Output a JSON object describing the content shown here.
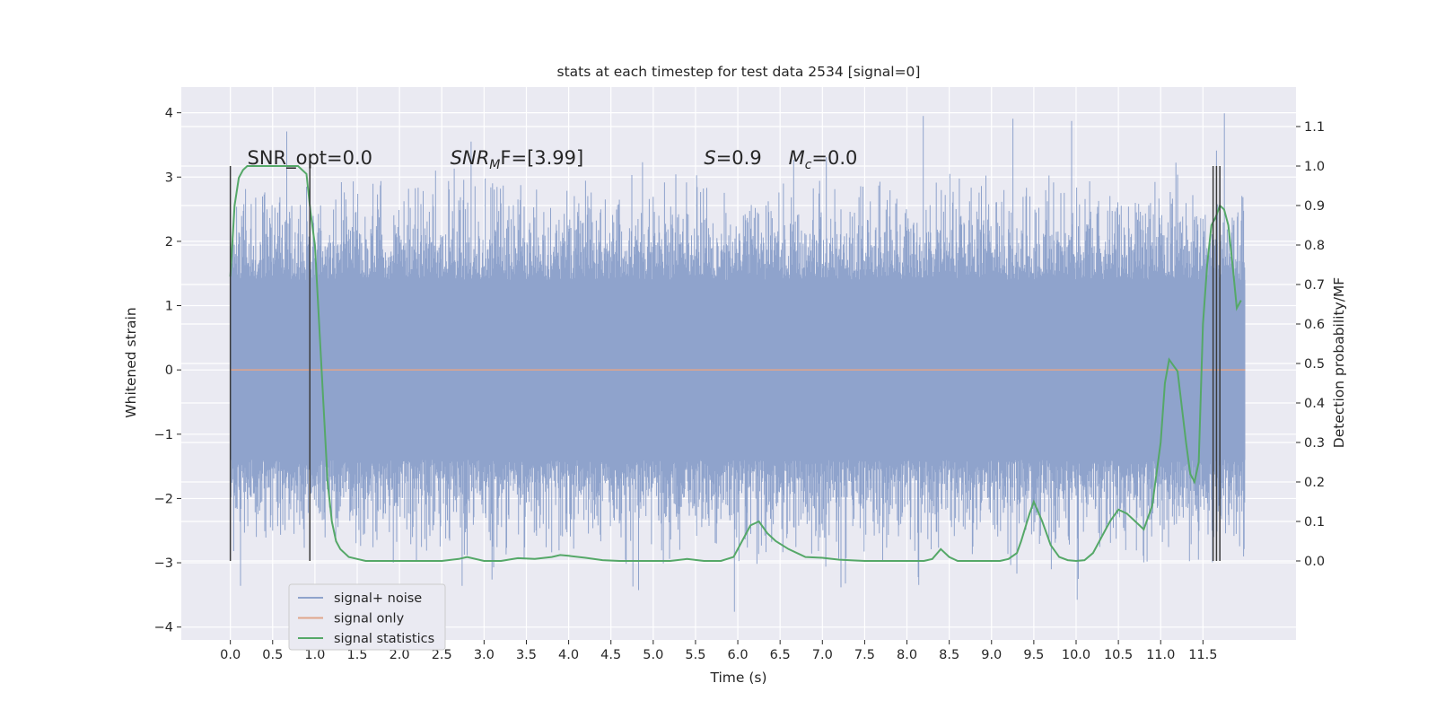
{
  "chart_data": {
    "type": "line",
    "title": "stats at each timestep for test data 2534 [signal=0]",
    "xlabel": "Time (s)",
    "ylabel_left": "Whitened strain",
    "ylabel_right": "Detection probability/MF",
    "xlim": [
      -0.58,
      12.6
    ],
    "xticks": [
      "0.0",
      "0.5",
      "1.0",
      "1.5",
      "2.0",
      "2.5",
      "3.0",
      "3.5",
      "4.0",
      "4.5",
      "5.0",
      "5.5",
      "6.0",
      "6.5",
      "7.0",
      "7.5",
      "8.0",
      "8.5",
      "9.0",
      "9.5",
      "10.0",
      "10.5",
      "11.0",
      "11.5"
    ],
    "xtick_values": [
      0.0,
      0.5,
      1.0,
      1.5,
      2.0,
      2.5,
      3.0,
      3.5,
      4.0,
      4.5,
      5.0,
      5.5,
      6.0,
      6.5,
      7.0,
      7.5,
      8.0,
      8.5,
      9.0,
      9.5,
      10.0,
      10.5,
      11.0,
      11.5
    ],
    "ylim_left": [
      -4.2,
      4.4
    ],
    "yticks_left": [
      "−4",
      "−3",
      "−2",
      "−1",
      "0",
      "1",
      "2",
      "3",
      "4"
    ],
    "ytick_values_left": [
      -4,
      -3,
      -2,
      -1,
      0,
      1,
      2,
      3,
      4
    ],
    "ylim_right": [
      -0.2,
      1.2
    ],
    "yticks_right": [
      "0.0",
      "0.1",
      "0.2",
      "0.3",
      "0.4",
      "0.5",
      "0.6",
      "0.7",
      "0.8",
      "0.9",
      "1.0",
      "1.1"
    ],
    "ytick_values_right": [
      0.0,
      0.1,
      0.2,
      0.3,
      0.4,
      0.5,
      0.6,
      0.7,
      0.8,
      0.9,
      1.0,
      1.1
    ],
    "grid": true,
    "legend": {
      "placement": "lower-left",
      "entries": [
        "signal+ noise",
        "signal only",
        "signal statistics"
      ]
    },
    "annotations": [
      {
        "text": "SNR_opt=0.0",
        "x": 0.2,
        "y": 3.2
      },
      {
        "text": "SNR",
        "sub": "M",
        "rest": "F=[3.99]",
        "x": 2.6,
        "y": 3.2
      },
      {
        "text": "S",
        "rest": "=0.9",
        "x": 5.6,
        "y": 3.2
      },
      {
        "text": "M",
        "sub": "c",
        "rest": "=0.0",
        "x": 6.6,
        "y": 3.2
      }
    ],
    "vertical_markers": {
      "x": [
        0.0,
        0.94,
        11.62,
        11.66,
        11.7
      ],
      "ymin_right": 0.0,
      "ymax_right": 1.0
    },
    "series": [
      {
        "name": "signal+ noise",
        "color": "#8fa3cc",
        "axis": "left",
        "x_range": [
          0.0,
          12.0
        ],
        "core_band": [
          -1.4,
          1.4
        ],
        "typical_extreme": 3.0,
        "max_value": 4.1,
        "min_value": -3.8
      },
      {
        "name": "signal only",
        "color": "#e0a58a",
        "axis": "left",
        "x": [
          0.0,
          12.0
        ],
        "values": [
          0.0,
          0.0
        ]
      },
      {
        "name": "signal statistics",
        "color": "#55a868",
        "axis": "right",
        "x": [
          0.0,
          0.05,
          0.1,
          0.15,
          0.2,
          0.3,
          0.5,
          0.7,
          0.8,
          0.85,
          0.9,
          0.95,
          1.0,
          1.05,
          1.1,
          1.15,
          1.2,
          1.25,
          1.3,
          1.35,
          1.4,
          1.5,
          1.6,
          1.8,
          2.0,
          2.2,
          2.5,
          2.7,
          2.8,
          3.0,
          3.2,
          3.4,
          3.6,
          3.8,
          3.9,
          4.0,
          4.2,
          4.4,
          4.6,
          5.0,
          5.2,
          5.4,
          5.6,
          5.8,
          5.95,
          6.05,
          6.15,
          6.25,
          6.35,
          6.45,
          6.6,
          6.8,
          7.0,
          7.2,
          7.5,
          7.8,
          8.0,
          8.1,
          8.2,
          8.3,
          8.4,
          8.5,
          8.6,
          8.8,
          9.0,
          9.1,
          9.2,
          9.3,
          9.35,
          9.45,
          9.5,
          9.6,
          9.7,
          9.8,
          9.9,
          10.0,
          10.1,
          10.2,
          10.3,
          10.4,
          10.5,
          10.6,
          10.7,
          10.8,
          10.9,
          11.0,
          11.05,
          11.1,
          11.2,
          11.3,
          11.35,
          11.4,
          11.45,
          11.5,
          11.55,
          11.6,
          11.65,
          11.7,
          11.75,
          11.8,
          11.85,
          11.9,
          11.95
        ],
        "values": [
          0.72,
          0.9,
          0.97,
          0.99,
          1.0,
          1.0,
          1.0,
          1.0,
          1.0,
          0.99,
          0.98,
          0.88,
          0.8,
          0.6,
          0.4,
          0.2,
          0.1,
          0.05,
          0.03,
          0.02,
          0.01,
          0.005,
          0.0,
          0.0,
          0.0,
          0.0,
          0.0,
          0.005,
          0.01,
          0.0,
          0.0,
          0.007,
          0.005,
          0.01,
          0.015,
          0.013,
          0.008,
          0.002,
          0.0,
          0.0,
          0.0,
          0.005,
          0.0,
          0.0,
          0.01,
          0.05,
          0.09,
          0.1,
          0.07,
          0.05,
          0.03,
          0.01,
          0.008,
          0.003,
          0.0,
          0.0,
          0.0,
          0.0,
          0.0,
          0.005,
          0.03,
          0.01,
          0.0,
          0.0,
          0.0,
          0.0,
          0.005,
          0.02,
          0.05,
          0.12,
          0.15,
          0.1,
          0.04,
          0.01,
          0.002,
          0.0,
          0.002,
          0.02,
          0.06,
          0.1,
          0.13,
          0.12,
          0.1,
          0.08,
          0.14,
          0.3,
          0.45,
          0.51,
          0.48,
          0.3,
          0.22,
          0.2,
          0.25,
          0.6,
          0.75,
          0.85,
          0.87,
          0.9,
          0.89,
          0.85,
          0.75,
          0.64,
          0.66
        ]
      }
    ]
  }
}
